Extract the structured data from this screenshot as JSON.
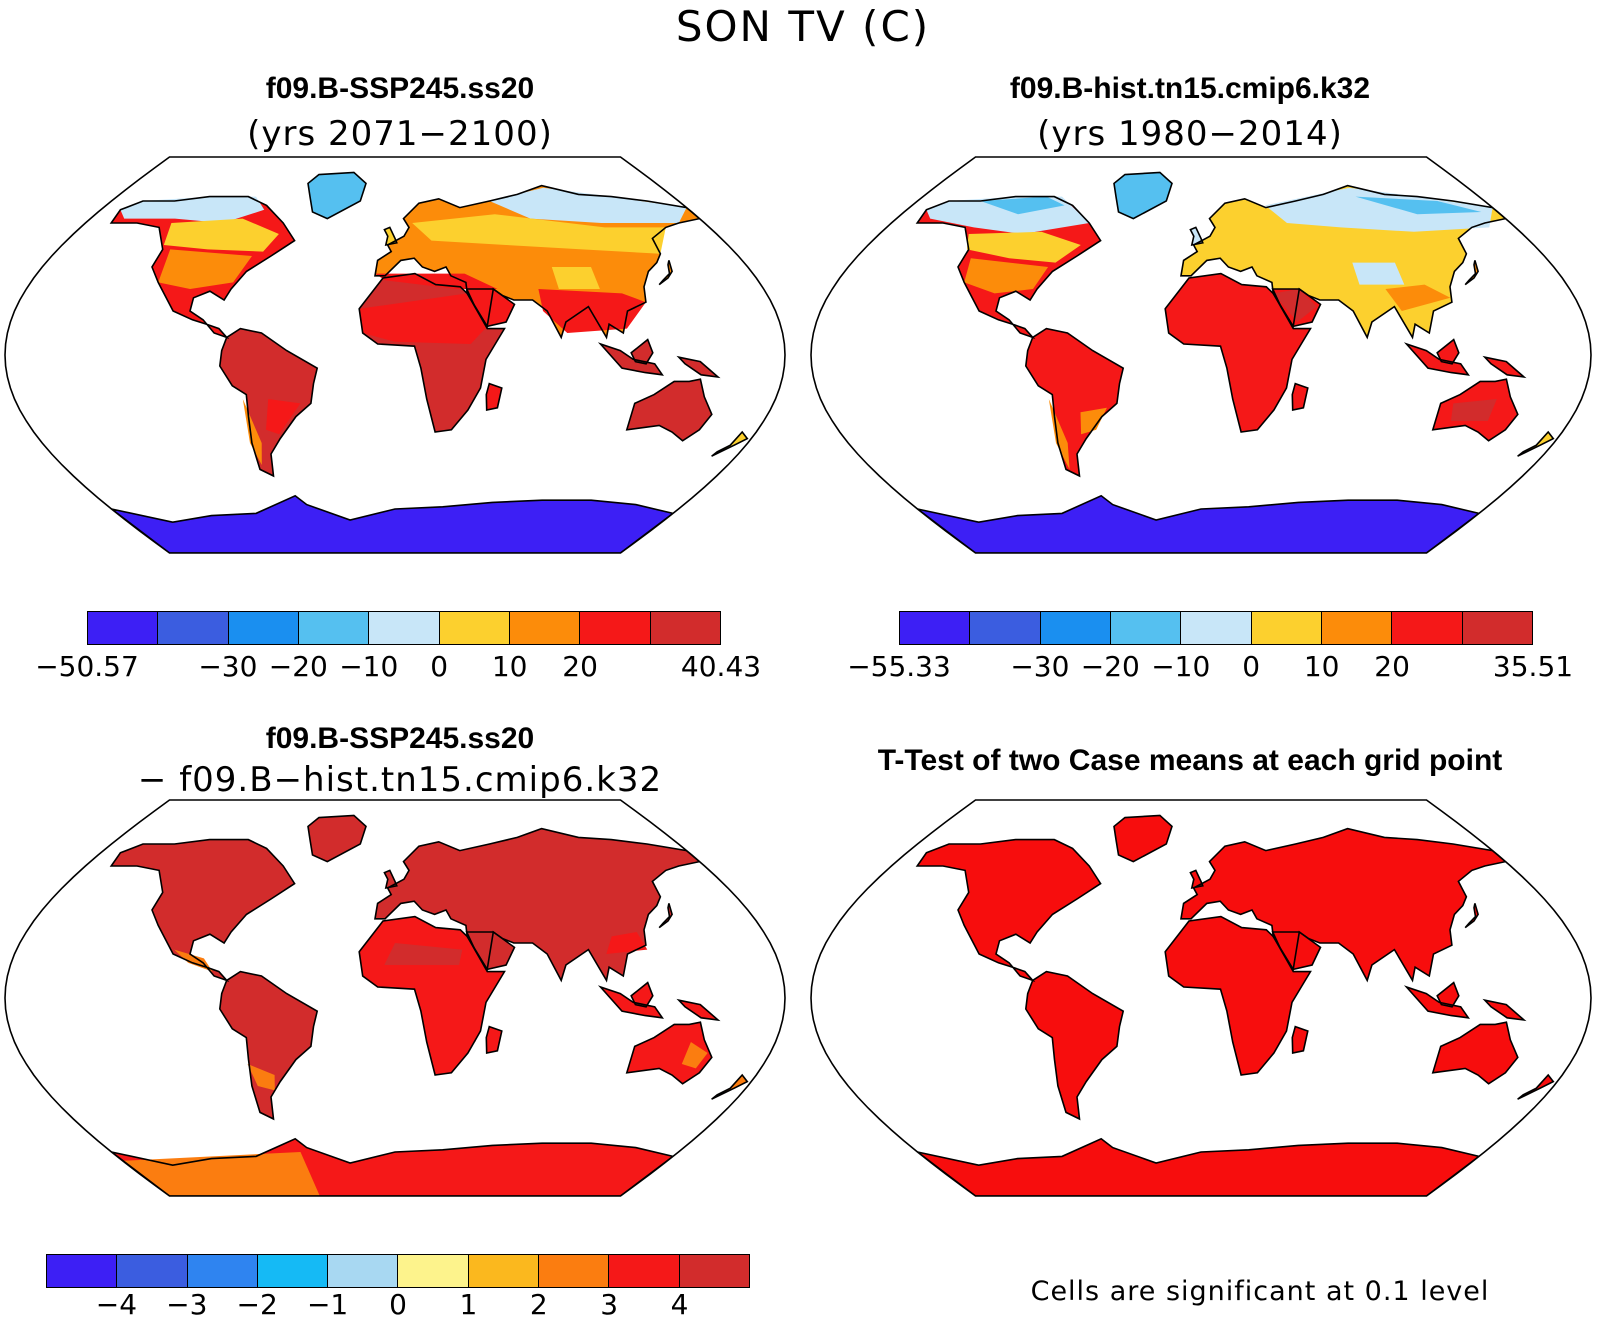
{
  "figure_title": "SON TV (C)",
  "panels": {
    "p1": {
      "title": "f09.B-SSP245.ss20",
      "subtitle": "(yrs 2071−2100)"
    },
    "p2": {
      "title": "f09.B-hist.tn15.cmip6.k32",
      "subtitle": "(yrs 1980−2014)"
    },
    "p3": {
      "title": "f09.B-SSP245.ss20",
      "subtitle": "− f09.B−hist.tn15.cmip6.k32"
    },
    "p4": {
      "title": "T-Test of two Case means at each grid point",
      "note": "Cells are significant at 0.1 level"
    }
  },
  "colorbars": {
    "cb1": {
      "colors": [
        "#3d1ff5",
        "#3b5de0",
        "#1a8ff0",
        "#55c0f0",
        "#c8e6f8",
        "#fcd02e",
        "#fc8c0a",
        "#f51818",
        "#d22c2c"
      ],
      "labels": [
        "−50.57",
        "−30",
        "−20",
        "−10",
        "0",
        "10",
        "20",
        "40.43"
      ],
      "label_edges": [
        0,
        2,
        3,
        4,
        5,
        6,
        7,
        9
      ]
    },
    "cb2": {
      "colors": [
        "#3d1ff5",
        "#3b5de0",
        "#1a8ff0",
        "#55c0f0",
        "#c8e6f8",
        "#fcd02e",
        "#fc8c0a",
        "#f51818",
        "#d22c2c"
      ],
      "labels": [
        "−55.33",
        "−30",
        "−20",
        "−10",
        "0",
        "10",
        "20",
        "35.51"
      ],
      "label_edges": [
        0,
        2,
        3,
        4,
        5,
        6,
        7,
        9
      ]
    },
    "cb3": {
      "colors": [
        "#3d1ff5",
        "#3b5de0",
        "#2f84f0",
        "#15baf5",
        "#a8d8f2",
        "#fdf38c",
        "#fbb81e",
        "#fb7d10",
        "#f51818",
        "#d22c2c"
      ],
      "labels": [
        "−4",
        "−3",
        "−2",
        "−1",
        "0",
        "1",
        "2",
        "3",
        "4"
      ],
      "label_edges": [
        1,
        2,
        3,
        4,
        5,
        6,
        7,
        8,
        9
      ]
    }
  },
  "map_colors": {
    "very_cold": "#3d1ff5",
    "cold": "#3b5de0",
    "cool": "#55c0f0",
    "light": "#c8e6f8",
    "mild": "#fcd02e",
    "warm": "#fc8c0a",
    "hot": "#f51818",
    "hottest": "#d22c2c",
    "significant": "#f70d0d",
    "orange_diff": "#fb7d10"
  }
}
